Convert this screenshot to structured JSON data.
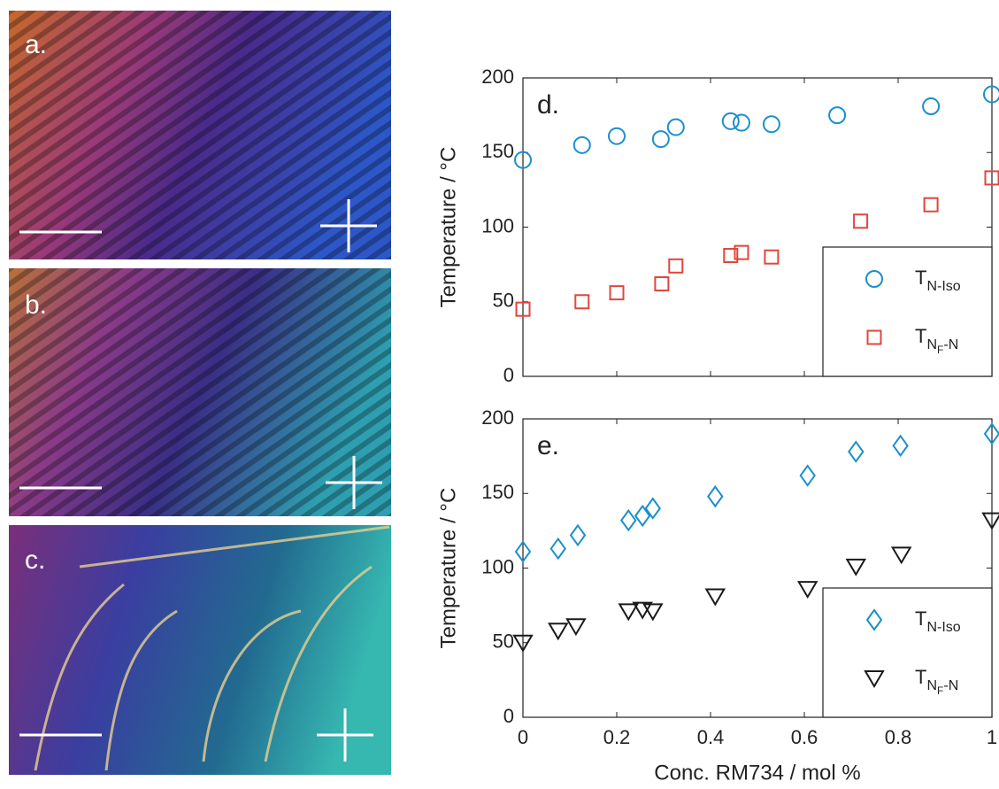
{
  "images": [
    {
      "label": "a."
    },
    {
      "label": "b."
    },
    {
      "label": "c."
    }
  ],
  "chart_data": [
    {
      "type": "scatter",
      "panel_label": "d.",
      "ylabel": "Temperature / °C",
      "xlim": [
        0,
        1
      ],
      "ylim": [
        0,
        200
      ],
      "xticks": [
        0,
        0.2,
        0.4,
        0.6,
        0.8,
        1
      ],
      "xtick_labels": false,
      "yticks": [
        0,
        50,
        100,
        150,
        200
      ],
      "legend": "lower right",
      "series": [
        {
          "name": "T",
          "name_subscript": "N-Iso",
          "marker": "circle",
          "color": "#1b8fce",
          "x": [
            0,
            0.126,
            0.2,
            0.294,
            0.326,
            0.443,
            0.466,
            0.53,
            0.67,
            0.87,
            1.0
          ],
          "values": [
            145,
            155,
            161,
            159,
            167,
            171,
            170,
            169,
            175,
            181,
            189
          ]
        },
        {
          "name": "T",
          "name_subscript": "N",
          "name_subsubscript": "F",
          "name_subscript_tail": "-N",
          "marker": "square",
          "color": "#e0463e",
          "x": [
            0,
            0.126,
            0.2,
            0.296,
            0.326,
            0.443,
            0.466,
            0.53,
            0.72,
            0.87,
            1.0
          ],
          "values": [
            45,
            50,
            56,
            62,
            74,
            81,
            83,
            80,
            104,
            115,
            133
          ]
        }
      ]
    },
    {
      "type": "scatter",
      "panel_label": "e.",
      "ylabel": "Temperature / °C",
      "xlabel": "Conc. RM734 / mol %",
      "xlim": [
        0,
        1
      ],
      "ylim": [
        0,
        200
      ],
      "xticks": [
        0,
        0.2,
        0.4,
        0.6,
        0.8,
        1
      ],
      "xtick_labels": true,
      "yticks": [
        0,
        50,
        100,
        150,
        200
      ],
      "legend": "lower right",
      "series": [
        {
          "name": "T",
          "name_subscript": "N-Iso",
          "marker": "diamond",
          "color": "#1b8fce",
          "x": [
            0,
            0.075,
            0.117,
            0.225,
            0.255,
            0.277,
            0.41,
            0.607,
            0.71,
            0.805,
            1.0
          ],
          "values": [
            111,
            113,
            122,
            132,
            135,
            140,
            148,
            162,
            178,
            182,
            190
          ]
        },
        {
          "name": "T",
          "name_subscript": "N",
          "name_subsubscript": "F",
          "name_subscript_tail": "-N",
          "marker": "triangle-down",
          "color": "#1a1a1a",
          "x": [
            0,
            0.075,
            0.113,
            0.225,
            0.255,
            0.277,
            0.41,
            0.607,
            0.71,
            0.807,
            1.0
          ],
          "values": [
            50,
            58,
            61,
            71,
            72,
            71,
            81,
            86,
            101,
            109,
            132
          ]
        }
      ]
    }
  ]
}
